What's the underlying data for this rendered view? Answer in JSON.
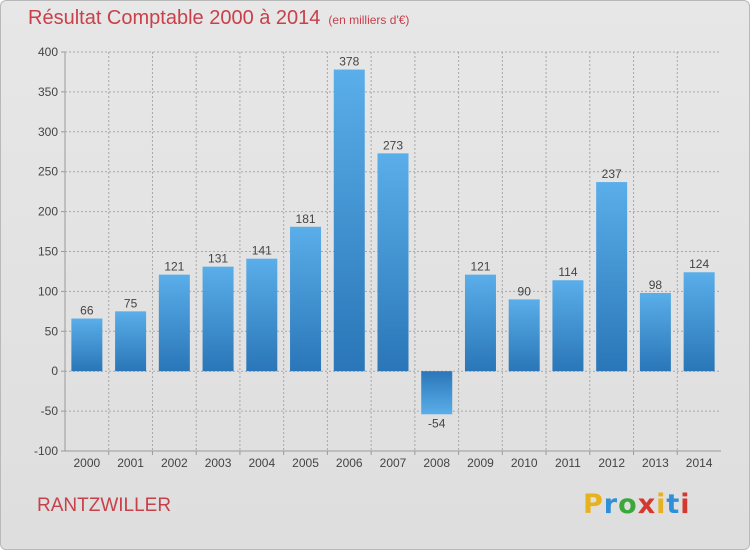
{
  "header": {
    "title": "Résultat Comptable 2000 à 2014",
    "subtitle": "(en milliers d'€)"
  },
  "footer": {
    "commune": "RANTZWILLER",
    "logo_text": "Proxiti"
  },
  "logo_letters": [
    {
      "ch": "P",
      "color": "#e8b21e"
    },
    {
      "ch": "r",
      "color": "#2f8fd8"
    },
    {
      "ch": "o",
      "color": "#3aa83a"
    },
    {
      "ch": "x",
      "color": "#d33a2f"
    },
    {
      "ch": "i",
      "color": "#e8b21e"
    },
    {
      "ch": "t",
      "color": "#2f8fd8"
    },
    {
      "ch": "i",
      "color": "#d33a2f"
    }
  ],
  "colors": {
    "accent_text": "#c8404a",
    "bar_light": "#5aaee9",
    "bar_dark": "#2a76b8"
  },
  "chart_data": {
    "type": "bar",
    "categories": [
      "2000",
      "2001",
      "2002",
      "2003",
      "2004",
      "2005",
      "2006",
      "2007",
      "2008",
      "2009",
      "2010",
      "2011",
      "2012",
      "2013",
      "2014"
    ],
    "values": [
      66,
      75,
      121,
      131,
      141,
      181,
      378,
      273,
      -54,
      121,
      90,
      114,
      237,
      98,
      124
    ],
    "ylim": [
      -100,
      400
    ],
    "yticks": [
      -100,
      -50,
      0,
      50,
      100,
      150,
      200,
      250,
      300,
      350,
      400
    ],
    "grid": true
  }
}
